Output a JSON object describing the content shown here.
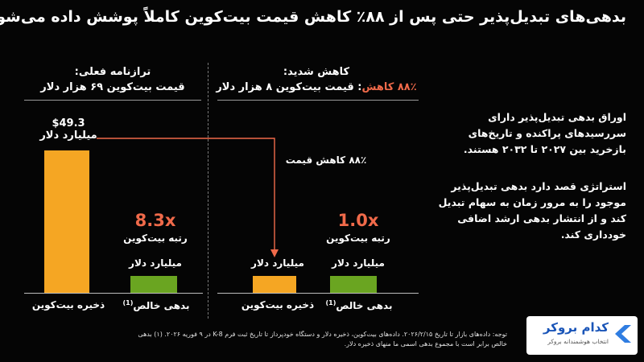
{
  "title": "بدهی‌های تبدیل‌پذیر حتی پس از ۸۸٪ کاهش قیمت بیت‌کوین کاملاً پوشش داده می‌شوند",
  "left_panel": {
    "heading_line1": "ترازنامه فعلی:",
    "heading_line2": "قیمت بیت‌کوین ۶۹ هزار دلار",
    "bars": [
      {
        "category": "ذخیره بیت‌کوین",
        "value_label_line1": "$49.3",
        "value_label_line2": "میلیارد دلار",
        "color": "#f5a623"
      },
      {
        "category": "بدهی خالص",
        "footnote_marker": "(1)",
        "value_label_line1": "میلیارد دلار",
        "color": "#6aa521"
      }
    ],
    "ratio": "8.3x",
    "ratio_sub": "رتبه بیت‌کوین"
  },
  "right_panel": {
    "heading_line1": "کاهش شدید:",
    "heading_prefix": "۸۸٪ کاهش",
    "heading_rest": ": قیمت بیت‌کوین ۸ هزار دلار",
    "bars": [
      {
        "category": "ذخیره بیت‌کوین",
        "value_label_line1": "میلیارد دلار",
        "color": "#f5a623"
      },
      {
        "category": "بدهی خالص",
        "footnote_marker": "(1)",
        "value_label_line1": "میلیارد دلار",
        "color": "#6aa521"
      }
    ],
    "ratio": "1.0x",
    "ratio_sub": "رتبه بیت‌کوین"
  },
  "arrow_label": "۸۸٪ کاهش قیمت",
  "chart_data": {
    "type": "bar",
    "title": "بدهی‌های تبدیل‌پذیر حتی پس از ۸۸٪ کاهش قیمت بیت‌کوین کاملاً پوشش داده می‌شوند",
    "panels": [
      {
        "name": "ترازنامه فعلی: قیمت بیت‌کوین ۶۹ هزار دلار",
        "categories": [
          "ذخیره بیت‌کوین",
          "بدهی خالص"
        ],
        "values": [
          49.3,
          5.9
        ],
        "unit": "میلیارد دلار",
        "ratio": "8.3x"
      },
      {
        "name": "کاهش شدید: ۸۸٪ کاهش: قیمت بیت‌کوین ۸ هزار دلار",
        "categories": [
          "ذخیره بیت‌کوین",
          "بدهی خالص"
        ],
        "values": [
          5.9,
          5.9
        ],
        "unit": "میلیارد دلار",
        "ratio": "1.0x"
      }
    ],
    "ylim": [
      0,
      50
    ],
    "grid": false,
    "colors": {
      "bitcoin_reserve": "#f5a623",
      "net_debt": "#6aa521",
      "accent": "#f06a4a"
    }
  },
  "side_text": {
    "para1": "اوراق بدهی تبدیل‌پذیر دارای سررسیدهای پراکنده و تاریخ‌های بازخرید بین ۲۰۲۷ تا ۲۰۳۲ هستند.",
    "para2": "استراتژی قصد دارد بدهی تبدیل‌پذیر موجود را به مرور زمان به سهام تبدیل کند و از انتشار بدهی ارشد اضافی خودداری کند."
  },
  "footnote": "توجه: داده‌های بازار تا تاریخ ۲۰۲۶/۲/۱۵. داده‌های بیت‌کوین، ذخیره دلار و دستگاه خودپرداز تا تاریخ ثبت فرم K-8 در ۹ فوریه ۲۰۲۶. (۱) بدهی خالص برابر است با مجموع بدهی اسمی ما منهای ذخیره دلار.",
  "logo": {
    "name": "کدام بروکر",
    "tagline": "انتخاب هوشمندانه بروکر"
  }
}
